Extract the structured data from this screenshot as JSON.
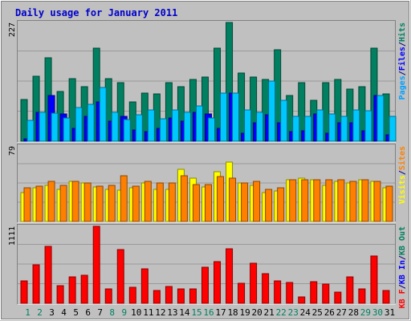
{
  "chart_data": {
    "type": "bar",
    "title": "Daily usage for January 2011",
    "categories": [
      "1",
      "2",
      "3",
      "4",
      "5",
      "6",
      "7",
      "8",
      "9",
      "10",
      "11",
      "12",
      "13",
      "14",
      "15",
      "16",
      "17",
      "18",
      "19",
      "20",
      "21",
      "22",
      "23",
      "24",
      "25",
      "26",
      "27",
      "28",
      "29",
      "30",
      "31"
    ],
    "weekend_days": [
      "1",
      "2",
      "8",
      "9",
      "15",
      "16",
      "22",
      "23",
      "29",
      "30"
    ],
    "panels": [
      {
        "id": "hits",
        "max_label": "227",
        "ylim": [
          0,
          227
        ],
        "legend": [
          {
            "text": "Pages",
            "color": "#00a0ff"
          },
          {
            "text": "/",
            "color": "#000080"
          },
          {
            "text": "Files",
            "color": "#0000ff"
          },
          {
            "text": "/",
            "color": "#000080"
          },
          {
            "text": "Hits",
            "color": "#008060"
          }
        ],
        "series": [
          {
            "name": "Hits",
            "color": "#008060",
            "offset": 0,
            "values": [
              80,
              125,
              160,
              95,
              120,
              105,
              178,
              120,
              112,
              75,
              92,
              90,
              112,
              105,
              118,
              122,
              178,
              227,
              130,
              122,
              118,
              175,
              88,
              112,
              78,
              112,
              118,
              100,
              105,
              178,
              90
            ]
          },
          {
            "name": "Files",
            "color": "#0000ff",
            "offset": 1,
            "values": [
              5,
              55,
              88,
              52,
              25,
              48,
              75,
              38,
              48,
              22,
              18,
              25,
              45,
              38,
              55,
              52,
              25,
              92,
              15,
              35,
              50,
              36,
              18,
              20,
              52,
              15,
              35,
              35,
              20,
              88,
              12
            ]
          },
          {
            "name": "Pages",
            "color": "#00c8ff",
            "offset": 2,
            "values": [
              40,
              55,
              53,
              45,
              65,
              70,
              103,
              55,
              42,
              50,
              60,
              43,
              60,
              55,
              68,
              45,
              92,
              92,
              60,
              55,
              115,
              78,
              47,
              48,
              60,
              52,
              48,
              60,
              58,
              88,
              48
            ]
          }
        ]
      },
      {
        "id": "visits",
        "max_label": "79",
        "ylim": [
          0,
          79
        ],
        "legend": [
          {
            "text": "Visits",
            "color": "#ffff00"
          },
          {
            "text": "/",
            "color": "#000080"
          },
          {
            "text": "Sites",
            "color": "#ff8000"
          }
        ],
        "series": [
          {
            "name": "Visits",
            "color": "#ffff00",
            "offset": 0,
            "values": [
              30,
              35,
              38,
              34,
              42,
              40,
              36,
              34,
              33,
              35,
              40,
              34,
              34,
              55,
              45,
              36,
              52,
              62,
              40,
              38,
              30,
              32,
              44,
              45,
              44,
              38,
              42,
              40,
              44,
              42,
              35
            ]
          },
          {
            "name": "Sites",
            "color": "#ff8000",
            "offset": 1,
            "values": [
              35,
              37,
              42,
              38,
              42,
              40,
              37,
              38,
              48,
              37,
              42,
              40,
              40,
              48,
              39,
              39,
              47,
              45,
              40,
              42,
              34,
              35,
              44,
              44,
              44,
              44,
              44,
              42,
              44,
              42,
              37
            ]
          }
        ]
      },
      {
        "id": "traffic",
        "max_label": "1111",
        "ylim": [
          0,
          1111
        ],
        "legend": [
          {
            "text": "KB F",
            "color": "#ff0000"
          },
          {
            "text": "/",
            "color": "#000080"
          },
          {
            "text": "KB In",
            "color": "#0000ff"
          },
          {
            "text": "/",
            "color": "#000080"
          },
          {
            "text": "KB Out",
            "color": "#008060"
          }
        ],
        "series": [
          {
            "name": "KB F",
            "color": "#ff0000",
            "offset": 0,
            "values": [
              320,
              560,
              820,
              260,
              380,
              410,
              1111,
              210,
              780,
              235,
              495,
              185,
              245,
              210,
              210,
              520,
              600,
              790,
              285,
              575,
              425,
              320,
              305,
              90,
              310,
              280,
              165,
              380,
              205,
              680,
              190
            ]
          }
        ]
      }
    ]
  }
}
